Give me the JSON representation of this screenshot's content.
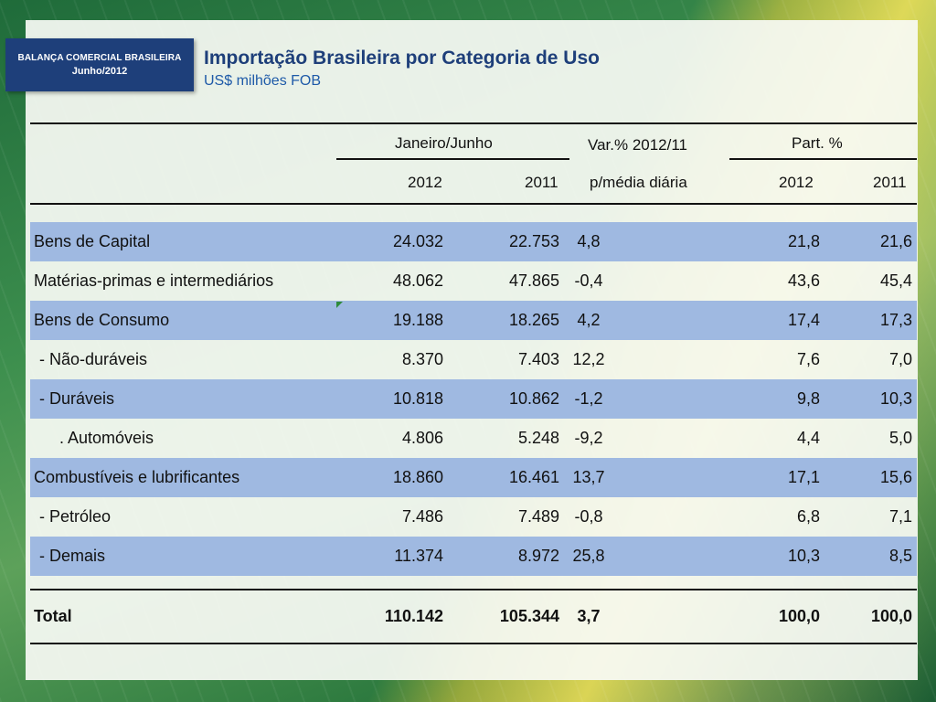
{
  "badge": {
    "line1": "BALANÇA COMERCIAL BRASILEIRA",
    "line2": "Junho/2012"
  },
  "title": "Importação Brasileira por Categoria de Uso",
  "subtitle": "US$ milhões FOB",
  "header": {
    "group_period": "Janeiro/Junho",
    "group_var": "Var.% 2012/11",
    "group_part": "Part. %",
    "col_2012": "2012",
    "col_2011": "2011",
    "col_var_sub": "p/média diária",
    "col_part_2012": "2012",
    "col_part_2011": "2011"
  },
  "rows": [
    {
      "label": "Bens de Capital",
      "v2012": "24.032",
      "v2011": "22.753",
      "var": "4,8",
      "p2012": "21,8",
      "p2011": "21,6"
    },
    {
      "label": "Matérias-primas e intermediários",
      "v2012": "48.062",
      "v2011": "47.865",
      "var": "-0,4",
      "p2012": "43,6",
      "p2011": "45,4"
    },
    {
      "label": "Bens de Consumo",
      "v2012": "19.188",
      "v2011": "18.265",
      "var": "4,2",
      "p2012": "17,4",
      "p2011": "17,3"
    },
    {
      "label": "- Não-duráveis",
      "v2012": "8.370",
      "v2011": "7.403",
      "var": "12,2",
      "p2012": "7,6",
      "p2011": "7,0"
    },
    {
      "label": "- Duráveis",
      "v2012": "10.818",
      "v2011": "10.862",
      "var": "-1,2",
      "p2012": "9,8",
      "p2011": "10,3"
    },
    {
      "label": ". Automóveis",
      "v2012": "4.806",
      "v2011": "5.248",
      "var": "-9,2",
      "p2012": "4,4",
      "p2011": "5,0"
    },
    {
      "label": "Combustíveis e lubrificantes",
      "v2012": "18.860",
      "v2011": "16.461",
      "var": "13,7",
      "p2012": "17,1",
      "p2011": "15,6"
    },
    {
      "label": "- Petróleo",
      "v2012": "7.486",
      "v2011": "7.489",
      "var": "-0,8",
      "p2012": "6,8",
      "p2011": "7,1"
    },
    {
      "label": "- Demais",
      "v2012": "11.374",
      "v2011": "8.972",
      "var": "25,8",
      "p2012": "10,3",
      "p2011": "8,5"
    }
  ],
  "total": {
    "label": "Total",
    "v2012": "110.142",
    "v2011": "105.344",
    "var": "3,7",
    "p2012": "100,0",
    "p2011": "100,0"
  },
  "colors": {
    "badge": "#1e3f7a",
    "row_blue": "#9fb9e1",
    "title": "#1e3f7a",
    "subtitle": "#1e5aa8"
  }
}
